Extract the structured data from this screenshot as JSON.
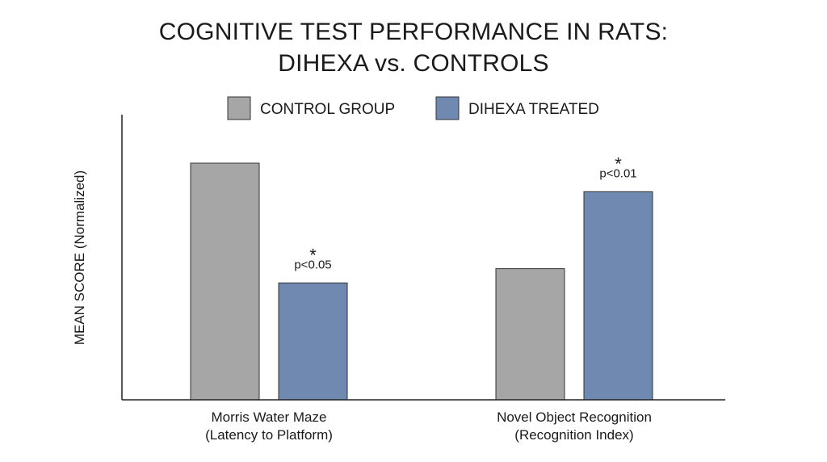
{
  "title_lines": [
    "COGNITIVE TEST PERFORMANCE IN RATS:",
    "DIHEXA vs. CONTROLS"
  ],
  "colors": {
    "control": "#a6a6a6",
    "dihexa": "#6f89b0",
    "axis": "#222222"
  },
  "chart_data": {
    "type": "bar",
    "title": "COGNITIVE TEST PERFORMANCE IN RATS: DIHEXA vs. CONTROLS",
    "ylabel": "MEAN SCORE (Normalized)",
    "xlabel": "",
    "ylim": [
      0,
      100
    ],
    "grid": false,
    "legend_position": "top-center",
    "categories": [
      [
        "Morris Water Maze",
        "(Latency to Platform)"
      ],
      [
        "Novel Object Recognition",
        "(Recognition Index)"
      ]
    ],
    "series": [
      {
        "name": "CONTROL GROUP",
        "values": [
          83,
          46
        ]
      },
      {
        "name": "DIHEXA TREATED",
        "values": [
          41,
          73
        ]
      }
    ],
    "annotations": [
      {
        "category_index": 0,
        "series_index": 1,
        "star": "*",
        "text": "p<0.05"
      },
      {
        "category_index": 1,
        "series_index": 1,
        "star": "*",
        "text": "p<0.01"
      }
    ]
  }
}
